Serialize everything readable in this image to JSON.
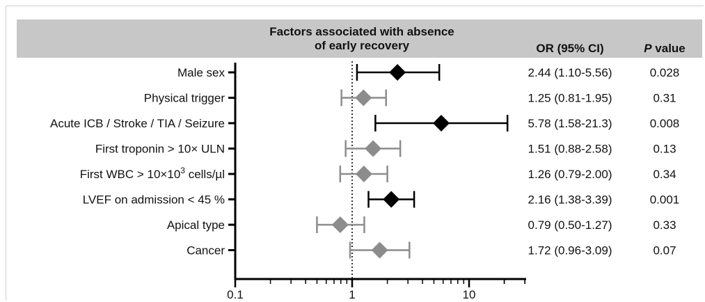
{
  "header": {
    "title_line1": "Factors associated with absence",
    "title_line2": "of early recovery",
    "or_label": "OR (95% CI)",
    "p_label_italic": "P",
    "p_label_rest": " value"
  },
  "colors": {
    "significant": "#000000",
    "nonsignificant": "#8c8c8c",
    "header_band": "#c7c7c7"
  },
  "chart_data": {
    "type": "forest",
    "xscale": "log",
    "xlim": [
      0.1,
      30
    ],
    "xticks": [
      0.1,
      1,
      10
    ],
    "xtick_labels": [
      "0.1",
      "1",
      "10"
    ],
    "reference_line": 1,
    "rows": [
      {
        "label": "Male sex",
        "or": 2.44,
        "lo": 1.1,
        "hi": 5.56,
        "ci_text": "2.44 (1.10-5.56)",
        "p": "0.028",
        "significant": true
      },
      {
        "label": "Physical trigger",
        "or": 1.25,
        "lo": 0.81,
        "hi": 1.95,
        "ci_text": "1.25 (0.81-1.95)",
        "p": "0.31",
        "significant": false
      },
      {
        "label": "Acute ICB / Stroke / TIA / Seizure",
        "or": 5.78,
        "lo": 1.58,
        "hi": 21.3,
        "ci_text": "5.78 (1.58-21.3)",
        "p": "0.008",
        "significant": true
      },
      {
        "label": "First troponin > 10× ULN",
        "or": 1.51,
        "lo": 0.88,
        "hi": 2.58,
        "ci_text": "1.51 (0.88-2.58)",
        "p": "0.13",
        "significant": false
      },
      {
        "label": "First WBC > 10×10",
        "label_sup": "3",
        "label_after": " cells/µl",
        "or": 1.26,
        "lo": 0.79,
        "hi": 2.0,
        "ci_text": "1.26 (0.79-2.00)",
        "p": "0.34",
        "significant": false
      },
      {
        "label": "LVEF on admission < 45 %",
        "or": 2.16,
        "lo": 1.38,
        "hi": 3.39,
        "ci_text": "2.16 (1.38-3.39)",
        "p": "0.001",
        "significant": true
      },
      {
        "label": "Apical type",
        "or": 0.79,
        "lo": 0.5,
        "hi": 1.27,
        "ci_text": "0.79 (0.50-1.27)",
        "p": "0.33",
        "significant": false
      },
      {
        "label": "Cancer",
        "or": 1.72,
        "lo": 0.96,
        "hi": 3.09,
        "ci_text": "1.72 (0.96-3.09)",
        "p": "0.07",
        "significant": false
      }
    ]
  }
}
